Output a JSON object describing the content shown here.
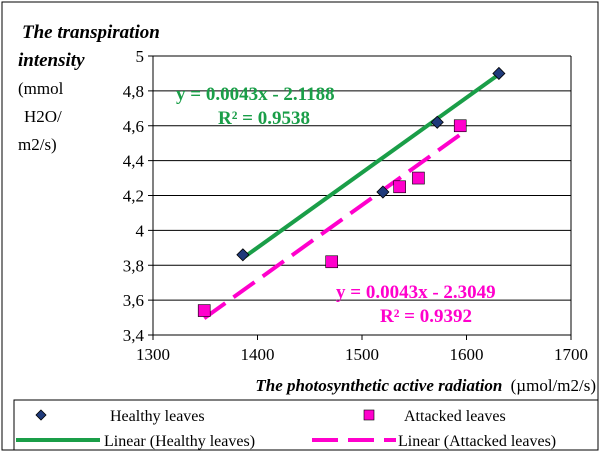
{
  "chart_data": {
    "type": "scatter",
    "ylabel_title_line1": "The transpiration",
    "ylabel_title_line2": "intensity",
    "ylabel_unit_lines": [
      "(mmol",
      "H2O/",
      "m2/s)"
    ],
    "xlabel_title": "The photosynthetic active radiation",
    "xlabel_unit": "(µmol/m2/s)",
    "xlim": [
      1300,
      1700
    ],
    "ylim": [
      3.4,
      5.0
    ],
    "x_ticks": [
      {
        "value": 1300,
        "label": "1300"
      },
      {
        "value": 1400,
        "label": "1400"
      },
      {
        "value": 1500,
        "label": "1500"
      },
      {
        "value": 1600,
        "label": "1600"
      },
      {
        "value": 1700,
        "label": "1700"
      }
    ],
    "y_ticks": [
      {
        "value": 3.4,
        "label": "3,4"
      },
      {
        "value": 3.6,
        "label": "3,6"
      },
      {
        "value": 3.8,
        "label": "3,8"
      },
      {
        "value": 4.0,
        "label": "4"
      },
      {
        "value": 4.2,
        "label": "4,2"
      },
      {
        "value": 4.4,
        "label": "4,4"
      },
      {
        "value": 4.6,
        "label": "4,6"
      },
      {
        "value": 4.8,
        "label": "4,8"
      },
      {
        "value": 5.0,
        "label": "5"
      }
    ],
    "grid": "horizontal",
    "legend_position": "bottom",
    "series": [
      {
        "name": "Healthy leaves",
        "marker": "diamond",
        "color": "#1f3a7a",
        "points": [
          {
            "x": 1386,
            "y": 3.86
          },
          {
            "x": 1520,
            "y": 4.22
          },
          {
            "x": 1572,
            "y": 4.62
          },
          {
            "x": 1631,
            "y": 4.9
          }
        ]
      },
      {
        "name": "Attacked leaves",
        "marker": "square",
        "color": "#ff00cc",
        "points": [
          {
            "x": 1349,
            "y": 3.54
          },
          {
            "x": 1471,
            "y": 3.82
          },
          {
            "x": 1536,
            "y": 4.25
          },
          {
            "x": 1554,
            "y": 4.3
          },
          {
            "x": 1594,
            "y": 4.6
          }
        ]
      }
    ],
    "trendlines": [
      {
        "name": "Linear (Healthy leaves)",
        "color": "#1a9e48",
        "dash": "solid",
        "slope": 0.0043,
        "intercept": -2.1188,
        "x_range": [
          1386,
          1631
        ],
        "equation": "y = 0.0043x - 2.1188",
        "r2": "R² = 0.9538"
      },
      {
        "name": "Linear (Attacked leaves)",
        "color": "#ff00cc",
        "dash": "dashed",
        "slope": 0.0043,
        "intercept": -2.3049,
        "x_range": [
          1349,
          1594
        ],
        "equation": "y = 0.0043x - 2.3049",
        "r2": "R² = 0.9392"
      }
    ],
    "legend": [
      {
        "label": "Healthy leaves",
        "kind": "marker",
        "series": 0
      },
      {
        "label": "Attacked leaves",
        "kind": "marker",
        "series": 1
      },
      {
        "label": "Linear (Healthy leaves)",
        "kind": "line",
        "series": 0
      },
      {
        "label": "Linear (Attacked leaves)",
        "kind": "line",
        "series": 1
      }
    ]
  }
}
